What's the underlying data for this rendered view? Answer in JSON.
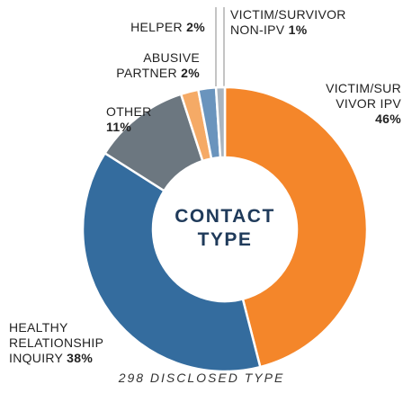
{
  "chart_data": {
    "type": "donut",
    "title": "CONTACT TYPE",
    "caption": "298 DISCLOSED TYPE",
    "categories": [
      "VICTIM/SURVIVOR IPV",
      "HEALTHY RELATIONSHIP INQUIRY",
      "OTHER",
      "ABUSIVE PARTNER",
      "HELPER",
      "VICTIM/SURVIVOR NON-IPV"
    ],
    "values": [
      46,
      38,
      11,
      2,
      2,
      1
    ],
    "value_labels": [
      "46%",
      "38%",
      "11%",
      "2%",
      "2%",
      "1%"
    ],
    "colors": [
      "#f4862a",
      "#346c9e",
      "#6c7780",
      "#f5aa66",
      "#6a94bd",
      "#a9b4bf"
    ]
  }
}
